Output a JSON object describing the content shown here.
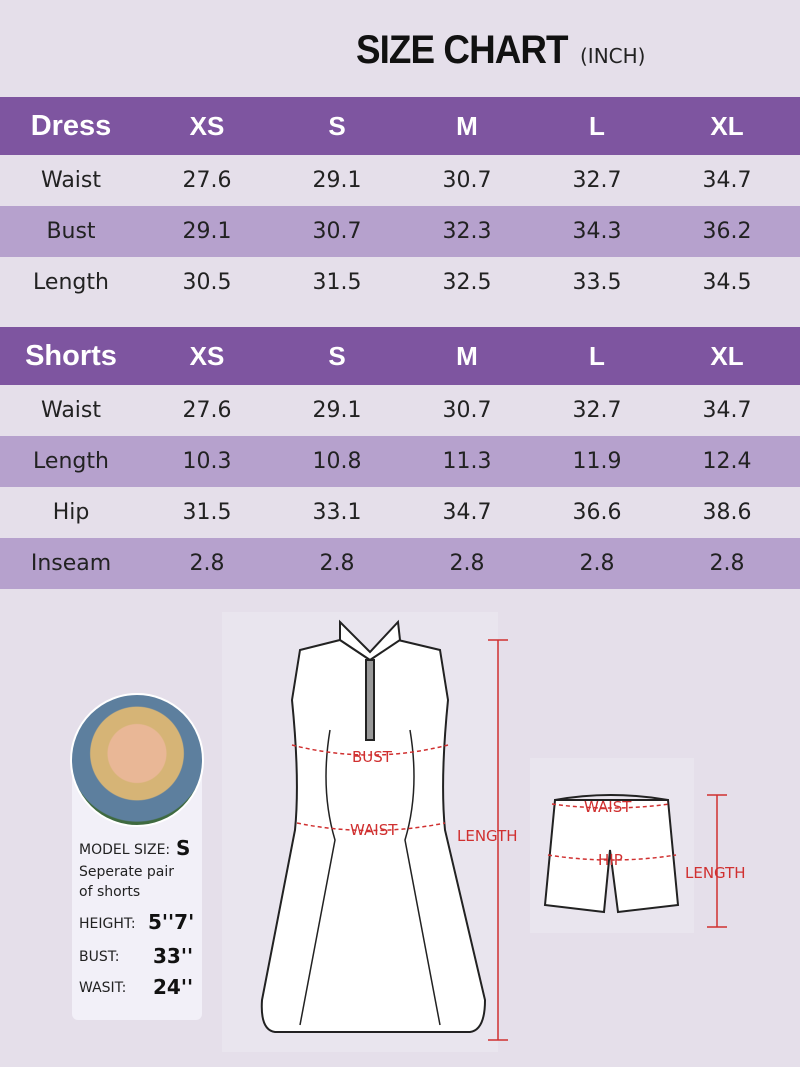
{
  "title": {
    "main": "SIZE CHART",
    "unit": "(INCH)"
  },
  "sizes": [
    "XS",
    "S",
    "M",
    "L",
    "XL"
  ],
  "dress": {
    "label": "Dress",
    "rows": [
      {
        "name": "Waist",
        "values": [
          "27.6",
          "29.1",
          "30.7",
          "32.7",
          "34.7"
        ]
      },
      {
        "name": "Bust",
        "values": [
          "29.1",
          "30.7",
          "32.3",
          "34.3",
          "36.2"
        ]
      },
      {
        "name": "Length",
        "values": [
          "30.5",
          "31.5",
          "32.5",
          "33.5",
          "34.5"
        ]
      }
    ]
  },
  "shorts": {
    "label": "Shorts",
    "rows": [
      {
        "name": "Waist",
        "values": [
          "27.6",
          "29.1",
          "30.7",
          "32.7",
          "34.7"
        ]
      },
      {
        "name": "Length",
        "values": [
          "10.3",
          "10.8",
          "11.3",
          "11.9",
          "12.4"
        ]
      },
      {
        "name": "Hip",
        "values": [
          "31.5",
          "33.1",
          "34.7",
          "36.6",
          "38.6"
        ]
      },
      {
        "name": "Inseam",
        "values": [
          "2.8",
          "2.8",
          "2.8",
          "2.8",
          "2.8"
        ]
      }
    ]
  },
  "model": {
    "size_label": "MODEL SIZE:",
    "size": "S",
    "note": "Seperate pair of shorts",
    "height_label": "HEIGHT:",
    "height": "5''7'",
    "bust_label": "BUST:",
    "bust": "33''",
    "waist_label": "WASIT:",
    "waist": "24''"
  },
  "diagram": {
    "dress_bust": "BUST",
    "dress_waist": "WAIST",
    "dress_length": "LENGTH",
    "shorts_waist": "WAIST",
    "shorts_hip": "HIP",
    "shorts_length": "LENGTH",
    "measure_color": "#d03030"
  },
  "colors": {
    "header": "#7e55a0",
    "alt_row": "#b6a1cd",
    "background": "#e5dfea"
  }
}
